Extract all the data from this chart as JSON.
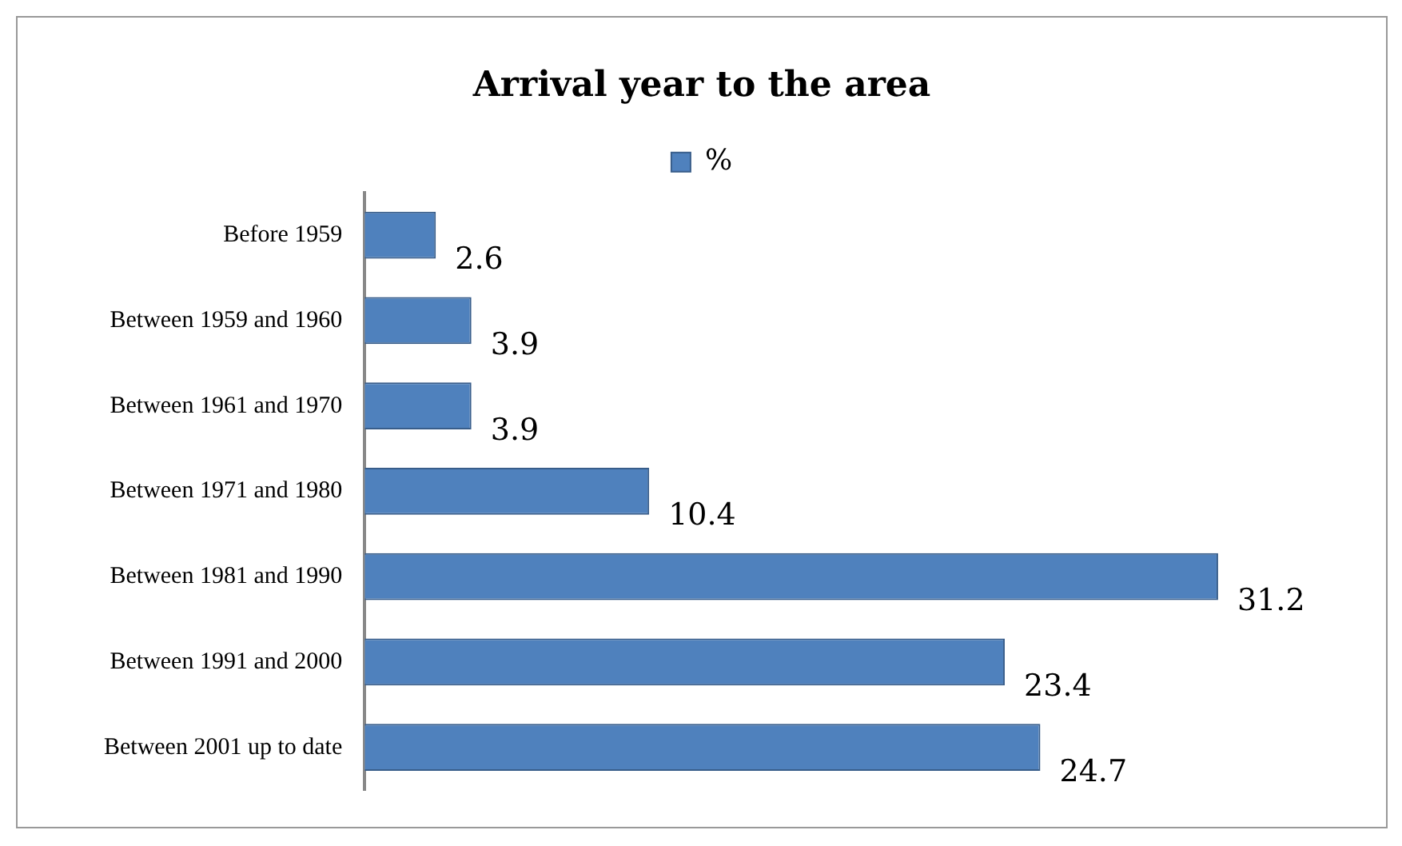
{
  "chart_data": {
    "type": "bar",
    "title": "Arrival year to the area",
    "orientation": "horizontal",
    "categories": [
      "Before 1959",
      "Between 1959 and 1960",
      "Between 1961 and 1970",
      "Between 1971 and 1980",
      "Between 1981 and 1990",
      "Between 1991 and 2000",
      "Between 2001 up to date"
    ],
    "series": [
      {
        "name": "%",
        "color": "#4f81bd",
        "values": [
          2.6,
          3.9,
          3.9,
          10.4,
          31.2,
          23.4,
          24.7
        ]
      }
    ],
    "data_labels": true,
    "legend": "top",
    "grid": false
  }
}
